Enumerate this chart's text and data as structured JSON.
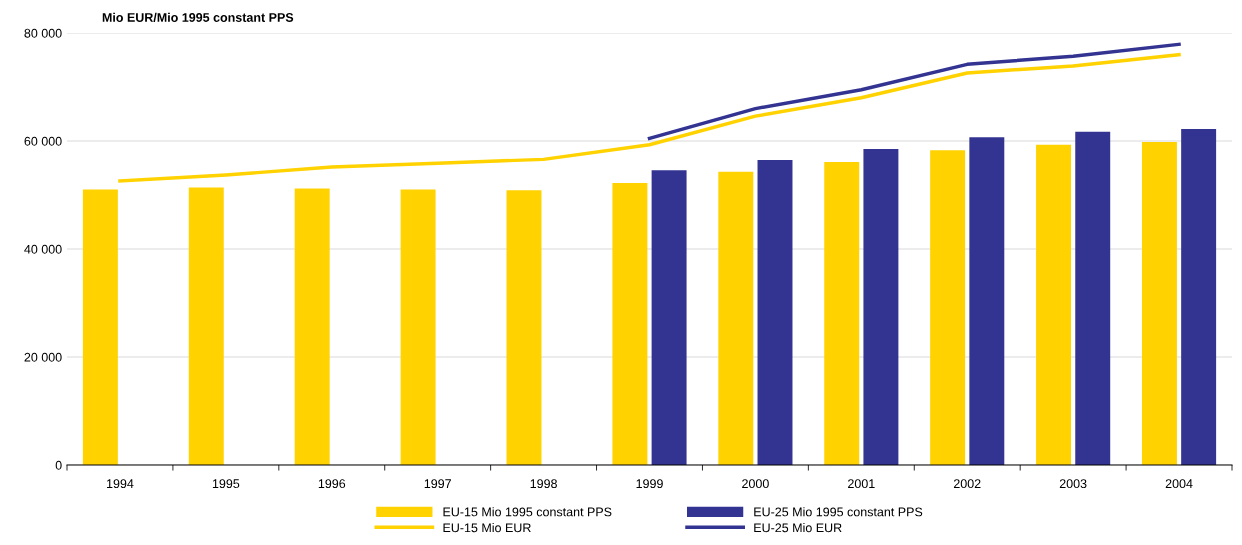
{
  "chart_data": {
    "type": "bar",
    "title": "Mio EUR/Mio 1995 constant PPS",
    "categories": [
      "1994",
      "1995",
      "1996",
      "1997",
      "1998",
      "1999",
      "2000",
      "2001",
      "2002",
      "2003",
      "2004"
    ],
    "series": [
      {
        "name": "EU-15 Mio 1995 constant PPS",
        "color": "#ffd200",
        "values": [
          51000,
          51400,
          51200,
          51000,
          50900,
          52200,
          54300,
          56100,
          58300,
          59300,
          59800
        ]
      },
      {
        "name": "EU-25 Mio 1995 constant PPS",
        "color": "#333391",
        "values": [
          null,
          null,
          null,
          null,
          null,
          54600,
          56500,
          58500,
          60700,
          61700,
          62200
        ]
      },
      {
        "name": "EU-15 Mio EUR",
        "type": "line",
        "color": "#ffd200",
        "values": [
          52600,
          53700,
          55200,
          55900,
          56600,
          59300,
          64600,
          68000,
          72600,
          73900,
          76000
        ]
      },
      {
        "name": "EU-25 Mio EUR",
        "type": "line",
        "color": "#333391",
        "values": [
          null,
          null,
          null,
          null,
          null,
          60500,
          66000,
          69500,
          74200,
          75700,
          77900
        ]
      }
    ],
    "ylim": [
      0,
      80000
    ],
    "yticks": [
      {
        "value": 0,
        "label": "0"
      },
      {
        "value": 20000,
        "label": "20 000"
      },
      {
        "value": 40000,
        "label": "40 000"
      },
      {
        "value": 60000,
        "label": "60 000"
      },
      {
        "value": 80000,
        "label": "80 000"
      }
    ],
    "grid": "y",
    "legend": "bottom"
  }
}
